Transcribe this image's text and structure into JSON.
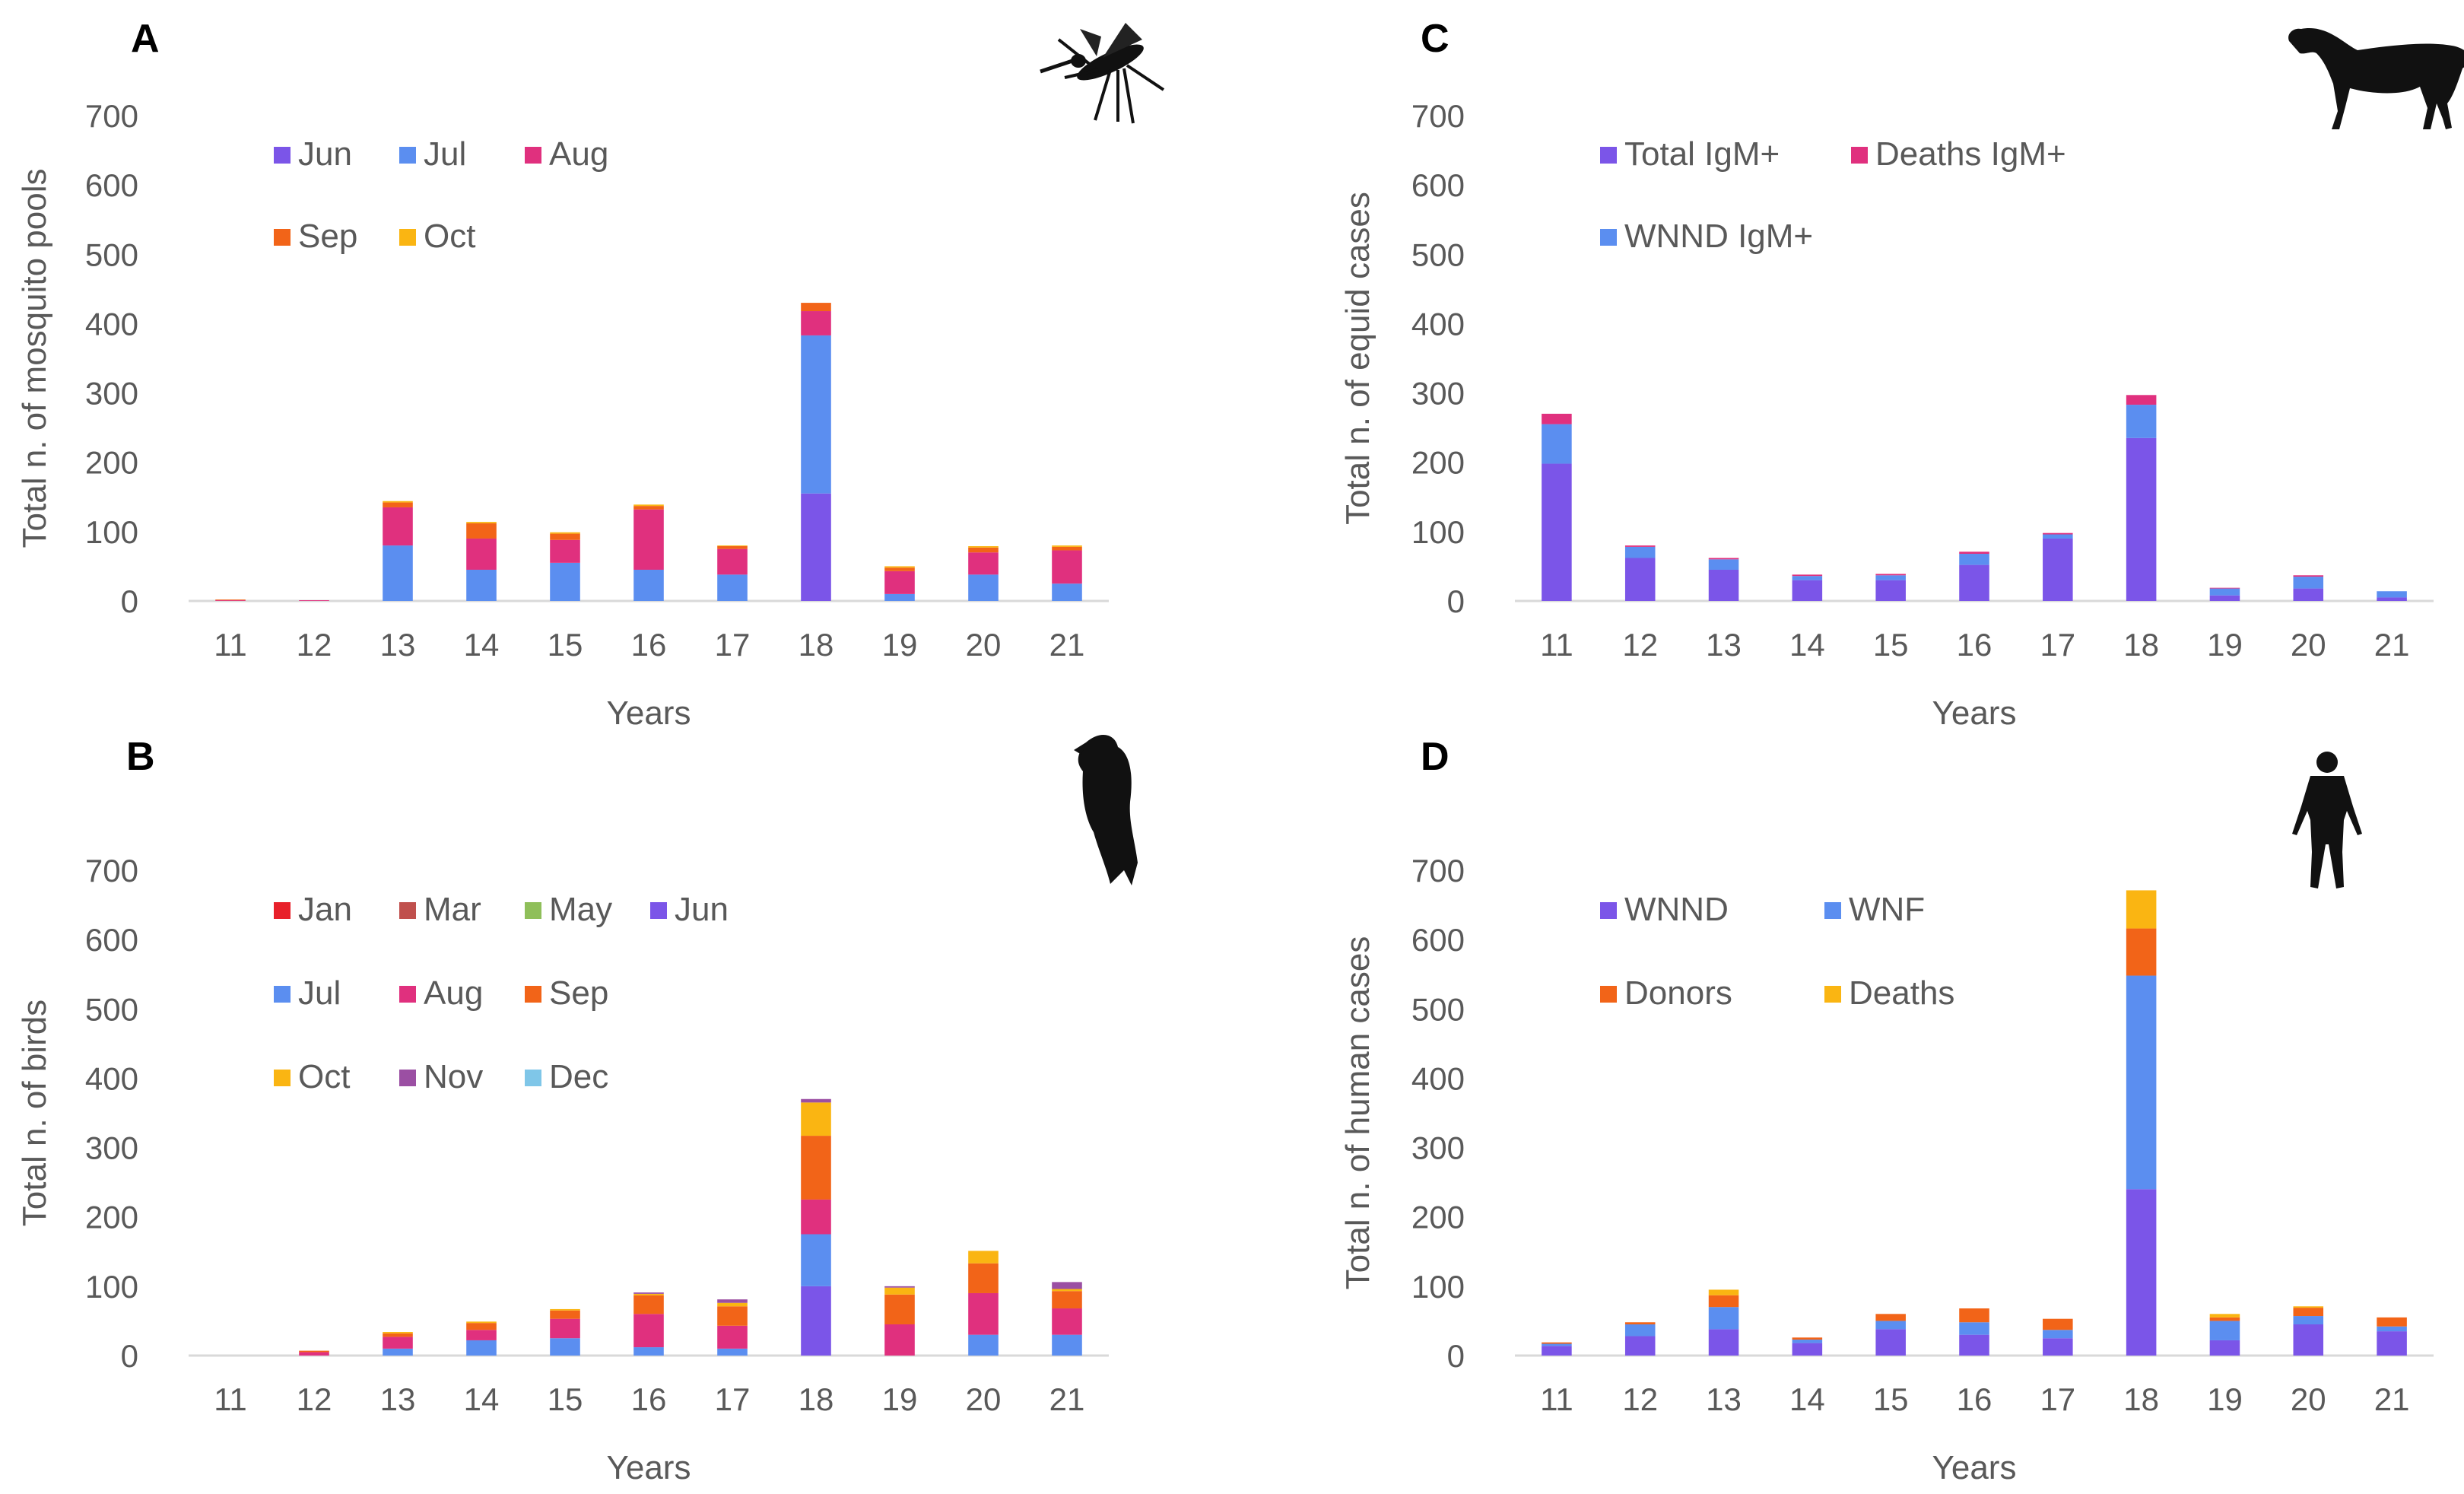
{
  "figure": {
    "panels": [
      {
        "letter": "A",
        "icon": "mosquito-icon",
        "chart_data": {
          "type": "bar",
          "stacked": true,
          "title": "",
          "xlabel": "Years",
          "ylabel": "Total n. of mosquito pools",
          "ylim": [
            0,
            700
          ],
          "yticks": [
            0,
            100,
            200,
            300,
            400,
            500,
            600,
            700
          ],
          "categories": [
            "11",
            "12",
            "13",
            "14",
            "15",
            "16",
            "17",
            "18",
            "19",
            "20",
            "21"
          ],
          "series": [
            {
              "name": "Jun",
              "color": "#7b55e8",
              "values": [
                0,
                0,
                0,
                0,
                0,
                0,
                0,
                155,
                0,
                0,
                0
              ]
            },
            {
              "name": "Jul",
              "color": "#5b8ef0",
              "values": [
                0,
                0,
                80,
                45,
                55,
                45,
                38,
                228,
                10,
                38,
                25
              ]
            },
            {
              "name": "Aug",
              "color": "#e0307e",
              "values": [
                1,
                1,
                55,
                45,
                33,
                87,
                37,
                35,
                33,
                32,
                48
              ]
            },
            {
              "name": "Sep",
              "color": "#f26418",
              "values": [
                1,
                0,
                7,
                22,
                9,
                5,
                4,
                12,
                5,
                7,
                5
              ]
            },
            {
              "name": "Oct",
              "color": "#fab512",
              "values": [
                0,
                0,
                2,
                2,
                2,
                2,
                1,
                0,
                2,
                2,
                2
              ]
            }
          ],
          "legend": {
            "placement": "top-left",
            "rows": [
              [
                "Jun",
                "Jul",
                "Aug"
              ],
              [
                "Sep",
                "Oct"
              ]
            ]
          }
        }
      },
      {
        "letter": "B",
        "icon": "bird-icon",
        "chart_data": {
          "type": "bar",
          "stacked": true,
          "title": "",
          "xlabel": "Years",
          "ylabel": "Total n. of birds",
          "ylim": [
            0,
            700
          ],
          "yticks": [
            0,
            100,
            200,
            300,
            400,
            500,
            600,
            700
          ],
          "categories": [
            "11",
            "12",
            "13",
            "14",
            "15",
            "16",
            "17",
            "18",
            "19",
            "20",
            "21"
          ],
          "series": [
            {
              "name": "Jan",
              "color": "#e8202a",
              "values": [
                0,
                0,
                0,
                0,
                0,
                0,
                0,
                0,
                0,
                0,
                0
              ]
            },
            {
              "name": "Mar",
              "color": "#c0504d",
              "values": [
                0,
                0,
                0,
                0,
                0,
                0,
                0,
                0,
                0,
                0,
                0
              ]
            },
            {
              "name": "May",
              "color": "#8fbf5a",
              "values": [
                0,
                0,
                0,
                0,
                0,
                0,
                0,
                0,
                0,
                0,
                0
              ]
            },
            {
              "name": "Jun",
              "color": "#7b55e8",
              "values": [
                0,
                0,
                0,
                0,
                0,
                0,
                0,
                100,
                0,
                0,
                0
              ]
            },
            {
              "name": "Jul",
              "color": "#5b8ef0",
              "values": [
                0,
                0,
                10,
                22,
                25,
                12,
                10,
                75,
                0,
                30,
                30
              ]
            },
            {
              "name": "Aug",
              "color": "#e0307e",
              "values": [
                0,
                5,
                17,
                15,
                28,
                48,
                33,
                50,
                45,
                60,
                38
              ]
            },
            {
              "name": "Sep",
              "color": "#f26418",
              "values": [
                0,
                2,
                5,
                10,
                12,
                27,
                28,
                92,
                43,
                43,
                25
              ]
            },
            {
              "name": "Oct",
              "color": "#fab512",
              "values": [
                0,
                0,
                2,
                2,
                2,
                2,
                5,
                48,
                10,
                18,
                3
              ]
            },
            {
              "name": "Nov",
              "color": "#9b4fa3",
              "values": [
                0,
                0,
                0,
                0,
                0,
                2,
                5,
                5,
                2,
                0,
                10
              ]
            },
            {
              "name": "Dec",
              "color": "#7fc6e8",
              "values": [
                0,
                0,
                0,
                0,
                0,
                0,
                0,
                0,
                0,
                0,
                0
              ]
            }
          ],
          "legend": {
            "placement": "top-left",
            "rows": [
              [
                "Jan",
                "Mar",
                "May",
                "Jun"
              ],
              [
                "Jul",
                "Aug",
                "Sep"
              ],
              [
                "Oct",
                "Nov",
                "Dec"
              ]
            ]
          }
        }
      },
      {
        "letter": "C",
        "icon": "horse-icon",
        "chart_data": {
          "type": "bar",
          "stacked": true,
          "title": "",
          "xlabel": "Years",
          "ylabel": "Total n. of equid cases",
          "ylim": [
            0,
            700
          ],
          "yticks": [
            0,
            100,
            200,
            300,
            400,
            500,
            600,
            700
          ],
          "categories": [
            "11",
            "12",
            "13",
            "14",
            "15",
            "16",
            "17",
            "18",
            "19",
            "20",
            "21"
          ],
          "series": [
            {
              "name": "Total IgM+",
              "color": "#7b55e8",
              "values": [
                198,
                62,
                45,
                30,
                30,
                52,
                90,
                235,
                8,
                18,
                5
              ]
            },
            {
              "name": "WNND IgM+",
              "color": "#5b8ef0",
              "values": [
                57,
                16,
                15,
                6,
                7,
                16,
                6,
                48,
                10,
                17,
                9
              ]
            },
            {
              "name": "Deaths IgM+",
              "color": "#e0307e",
              "values": [
                15,
                2,
                2,
                2,
                2,
                3,
                2,
                14,
                1,
                2,
                0
              ]
            }
          ],
          "legend": {
            "placement": "top-left",
            "rows": [
              [
                "Total IgM+",
                "Deaths IgM+"
              ],
              [
                "WNND IgM+"
              ]
            ]
          }
        }
      },
      {
        "letter": "D",
        "icon": "human-icon",
        "chart_data": {
          "type": "bar",
          "stacked": true,
          "title": "",
          "xlabel": "Years",
          "ylabel": "Total n. of human cases",
          "ylim": [
            0,
            700
          ],
          "yticks": [
            0,
            100,
            200,
            300,
            400,
            500,
            600,
            700
          ],
          "categories": [
            "11",
            "12",
            "13",
            "14",
            "15",
            "16",
            "17",
            "18",
            "19",
            "20",
            "21"
          ],
          "series": [
            {
              "name": "WNND",
              "color": "#7b55e8",
              "values": [
                14,
                28,
                38,
                18,
                38,
                30,
                25,
                240,
                22,
                45,
                35
              ]
            },
            {
              "name": "WNF",
              "color": "#5b8ef0",
              "values": [
                3,
                17,
                32,
                5,
                12,
                18,
                12,
                308,
                28,
                12,
                7
              ]
            },
            {
              "name": "Donors",
              "color": "#f26418",
              "values": [
                2,
                3,
                17,
                3,
                10,
                20,
                16,
                68,
                5,
                12,
                13
              ]
            },
            {
              "name": "Deaths",
              "color": "#fab512",
              "values": [
                0,
                0,
                8,
                0,
                0,
                0,
                0,
                55,
                5,
                2,
                0
              ]
            }
          ],
          "legend": {
            "placement": "top-left",
            "rows": [
              [
                "WNND",
                "WNF"
              ],
              [
                "Donors",
                "Deaths"
              ]
            ]
          }
        }
      }
    ]
  }
}
